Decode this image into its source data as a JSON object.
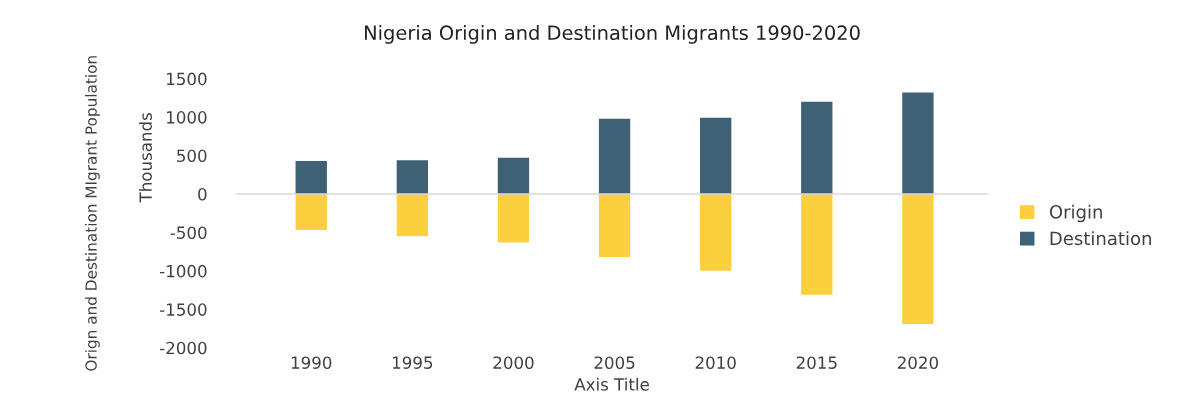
{
  "chart_data": {
    "type": "bar",
    "title": "Nigeria Origin and Destination Migrants 1990-2020",
    "xlabel": "Axis Title",
    "ylabel": "Orign and Destination MIgrant Population",
    "annotations": [
      "Thousands"
    ],
    "categories": [
      "1990",
      "1995",
      "2000",
      "2005",
      "2010",
      "2015",
      "2020"
    ],
    "series": [
      {
        "name": "Origin",
        "color": "#fccf3e",
        "values": [
          -470,
          -550,
          -630,
          -820,
          -1000,
          -1310,
          -1690
        ]
      },
      {
        "name": "Destination",
        "color": "#3e6175",
        "values": [
          430,
          440,
          470,
          980,
          990,
          1200,
          1320
        ]
      }
    ],
    "ylim": [
      -2000,
      1500
    ],
    "yticks": [
      -2000,
      -1500,
      -1000,
      -500,
      0,
      500,
      1000,
      1500
    ],
    "ref_lines": [
      {
        "axis": "y",
        "value": 0,
        "color": "#d9d9d9"
      }
    ],
    "grid": false,
    "legend": "right",
    "stacked": true
  }
}
